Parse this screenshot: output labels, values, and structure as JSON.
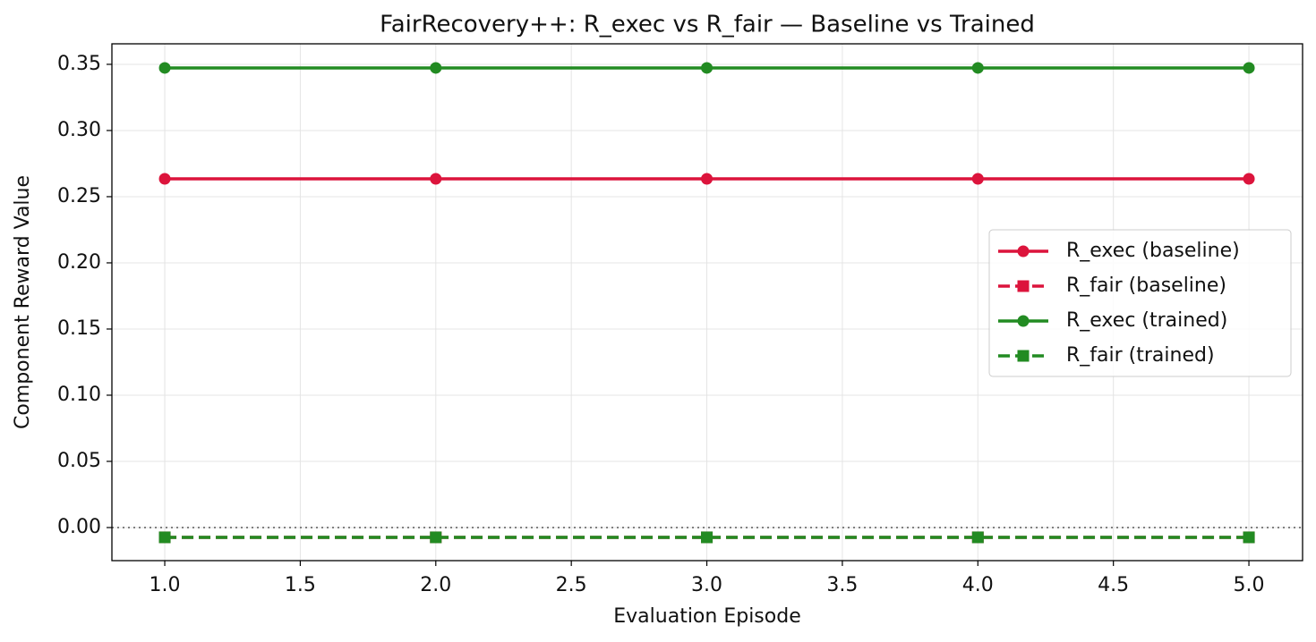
{
  "chart_data": {
    "type": "line",
    "title": "FairRecovery++: R_exec vs R_fair — Baseline vs Trained",
    "x_label": "Evaluation Episode",
    "y_label": "Component Reward Value",
    "x": [
      1,
      2,
      3,
      4,
      5
    ],
    "series": [
      {
        "name": "R_exec (baseline)",
        "color": "#dc143c",
        "linestyle": "solid",
        "marker": "circle",
        "values": [
          0.2635,
          0.2635,
          0.2635,
          0.2635,
          0.2635
        ]
      },
      {
        "name": "R_fair (baseline)",
        "color": "#dc143c",
        "linestyle": "dashed",
        "marker": "square",
        "values": [
          -0.0074,
          -0.0074,
          -0.0074,
          -0.0074,
          -0.0074
        ]
      },
      {
        "name": "R_exec (trained)",
        "color": "#228b22",
        "linestyle": "solid",
        "marker": "circle",
        "values": [
          0.3473,
          0.3473,
          0.3473,
          0.3473,
          0.3473
        ]
      },
      {
        "name": "R_fair (trained)",
        "color": "#228b22",
        "linestyle": "dashed",
        "marker": "square",
        "values": [
          -0.0074,
          -0.0074,
          -0.0074,
          -0.0074,
          -0.0074
        ]
      }
    ],
    "xlim": [
      0.805,
      5.198
    ],
    "ylim": [
      -0.025,
      0.3655
    ],
    "xticks": [
      {
        "value": 1,
        "label": "1.0"
      },
      1.5,
      {
        "value": 2,
        "label": "2.0"
      },
      2.5,
      {
        "value": 3,
        "label": "3.0"
      },
      3.5,
      {
        "value": 4,
        "label": "4.0"
      },
      4.5,
      {
        "value": 5,
        "label": "5.0"
      }
    ],
    "yticks": [
      {
        "value": 0,
        "label": "0.00"
      },
      0.05,
      {
        "value": 0.1,
        "label": "0.10"
      },
      0.15,
      {
        "value": 0.2,
        "label": "0.20"
      },
      0.25,
      {
        "value": 0.3,
        "label": "0.30"
      },
      0.35
    ],
    "reference_line": {
      "y": 0,
      "color": "#808080"
    },
    "grid": true,
    "legend": "right"
  }
}
